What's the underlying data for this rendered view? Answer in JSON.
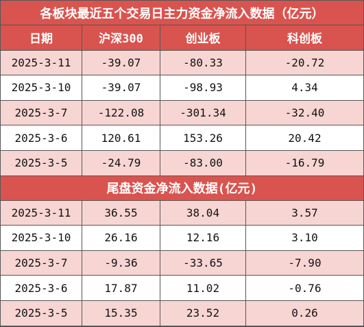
{
  "title": "各板块最近五个交易日主力资金净流入数据（亿元）",
  "table": {
    "header": [
      "日期",
      "沪深300",
      "创业板",
      "科创板"
    ],
    "rows": [
      [
        "2025-3-11",
        "-39.07",
        "-80.33",
        "-20.72"
      ],
      [
        "2025-3-10",
        "-39.07",
        "-98.93",
        "4.34"
      ],
      [
        "2025-3-7",
        "-122.08",
        "-301.34",
        "-32.40"
      ],
      [
        "2025-3-6",
        "120.61",
        "153.26",
        "20.42"
      ],
      [
        "2025-3-5",
        "-24.79",
        "-83.00",
        "-16.79"
      ]
    ]
  },
  "section2": {
    "title": "尾盘资金净流入数据(亿元)",
    "rows": [
      [
        "2025-3-11",
        "36.55",
        "38.04",
        "3.57"
      ],
      [
        "2025-3-10",
        "26.16",
        "12.16",
        "3.10"
      ],
      [
        "2025-3-7",
        "-9.36",
        "-33.65",
        "-7.90"
      ],
      [
        "2025-3-6",
        "17.87",
        "11.02",
        "-0.76"
      ],
      [
        "2025-3-5",
        "15.35",
        "23.52",
        "0.26"
      ]
    ]
  }
}
